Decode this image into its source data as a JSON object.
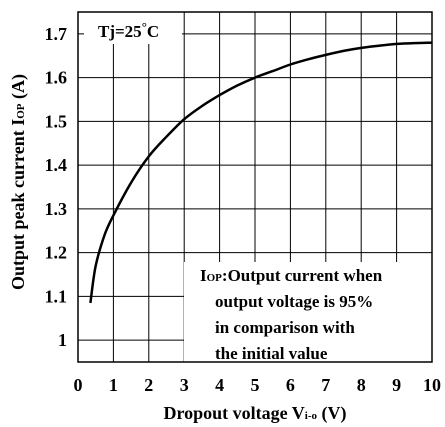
{
  "chart_data": {
    "type": "line",
    "xlabel": "Dropout voltage V",
    "xlabel_sub": "i-o",
    "xlabel_unit": " (V)",
    "ylabel": "Output peak current I",
    "ylabel_sub": "OP",
    "ylabel_unit": " (A)",
    "xlim": [
      0,
      10
    ],
    "ylim": [
      0.95,
      1.75
    ],
    "x_ticks": [
      "0",
      "1",
      "2",
      "3",
      "4",
      "5",
      "6",
      "7",
      "8",
      "9",
      "10"
    ],
    "y_ticks": [
      "1",
      "1.1",
      "1.2",
      "1.3",
      "1.4",
      "1.5",
      "1.6",
      "1.7"
    ],
    "grid": true,
    "condition": {
      "main": "Tj=25",
      "degree": "°",
      "unit": "C"
    },
    "note": {
      "lead_big": "I",
      "lead_sub": "OP",
      "line1_rest": ":Output current when",
      "line2": "output voltage is 95%",
      "line3": "in comparison with",
      "line4": "the initial value"
    },
    "series": [
      {
        "x": [
          0.35,
          0.5,
          0.75,
          1.0,
          1.5,
          2.0,
          2.5,
          3.0,
          3.5,
          4.0,
          4.5,
          5.0,
          5.5,
          6.0,
          6.5,
          7.0,
          7.5,
          8.0,
          8.5,
          9.0,
          9.5,
          10.0
        ],
        "values": [
          1.085,
          1.17,
          1.24,
          1.285,
          1.36,
          1.42,
          1.465,
          1.505,
          1.535,
          1.56,
          1.582,
          1.6,
          1.615,
          1.63,
          1.642,
          1.652,
          1.661,
          1.668,
          1.673,
          1.677,
          1.679,
          1.68
        ]
      }
    ]
  }
}
